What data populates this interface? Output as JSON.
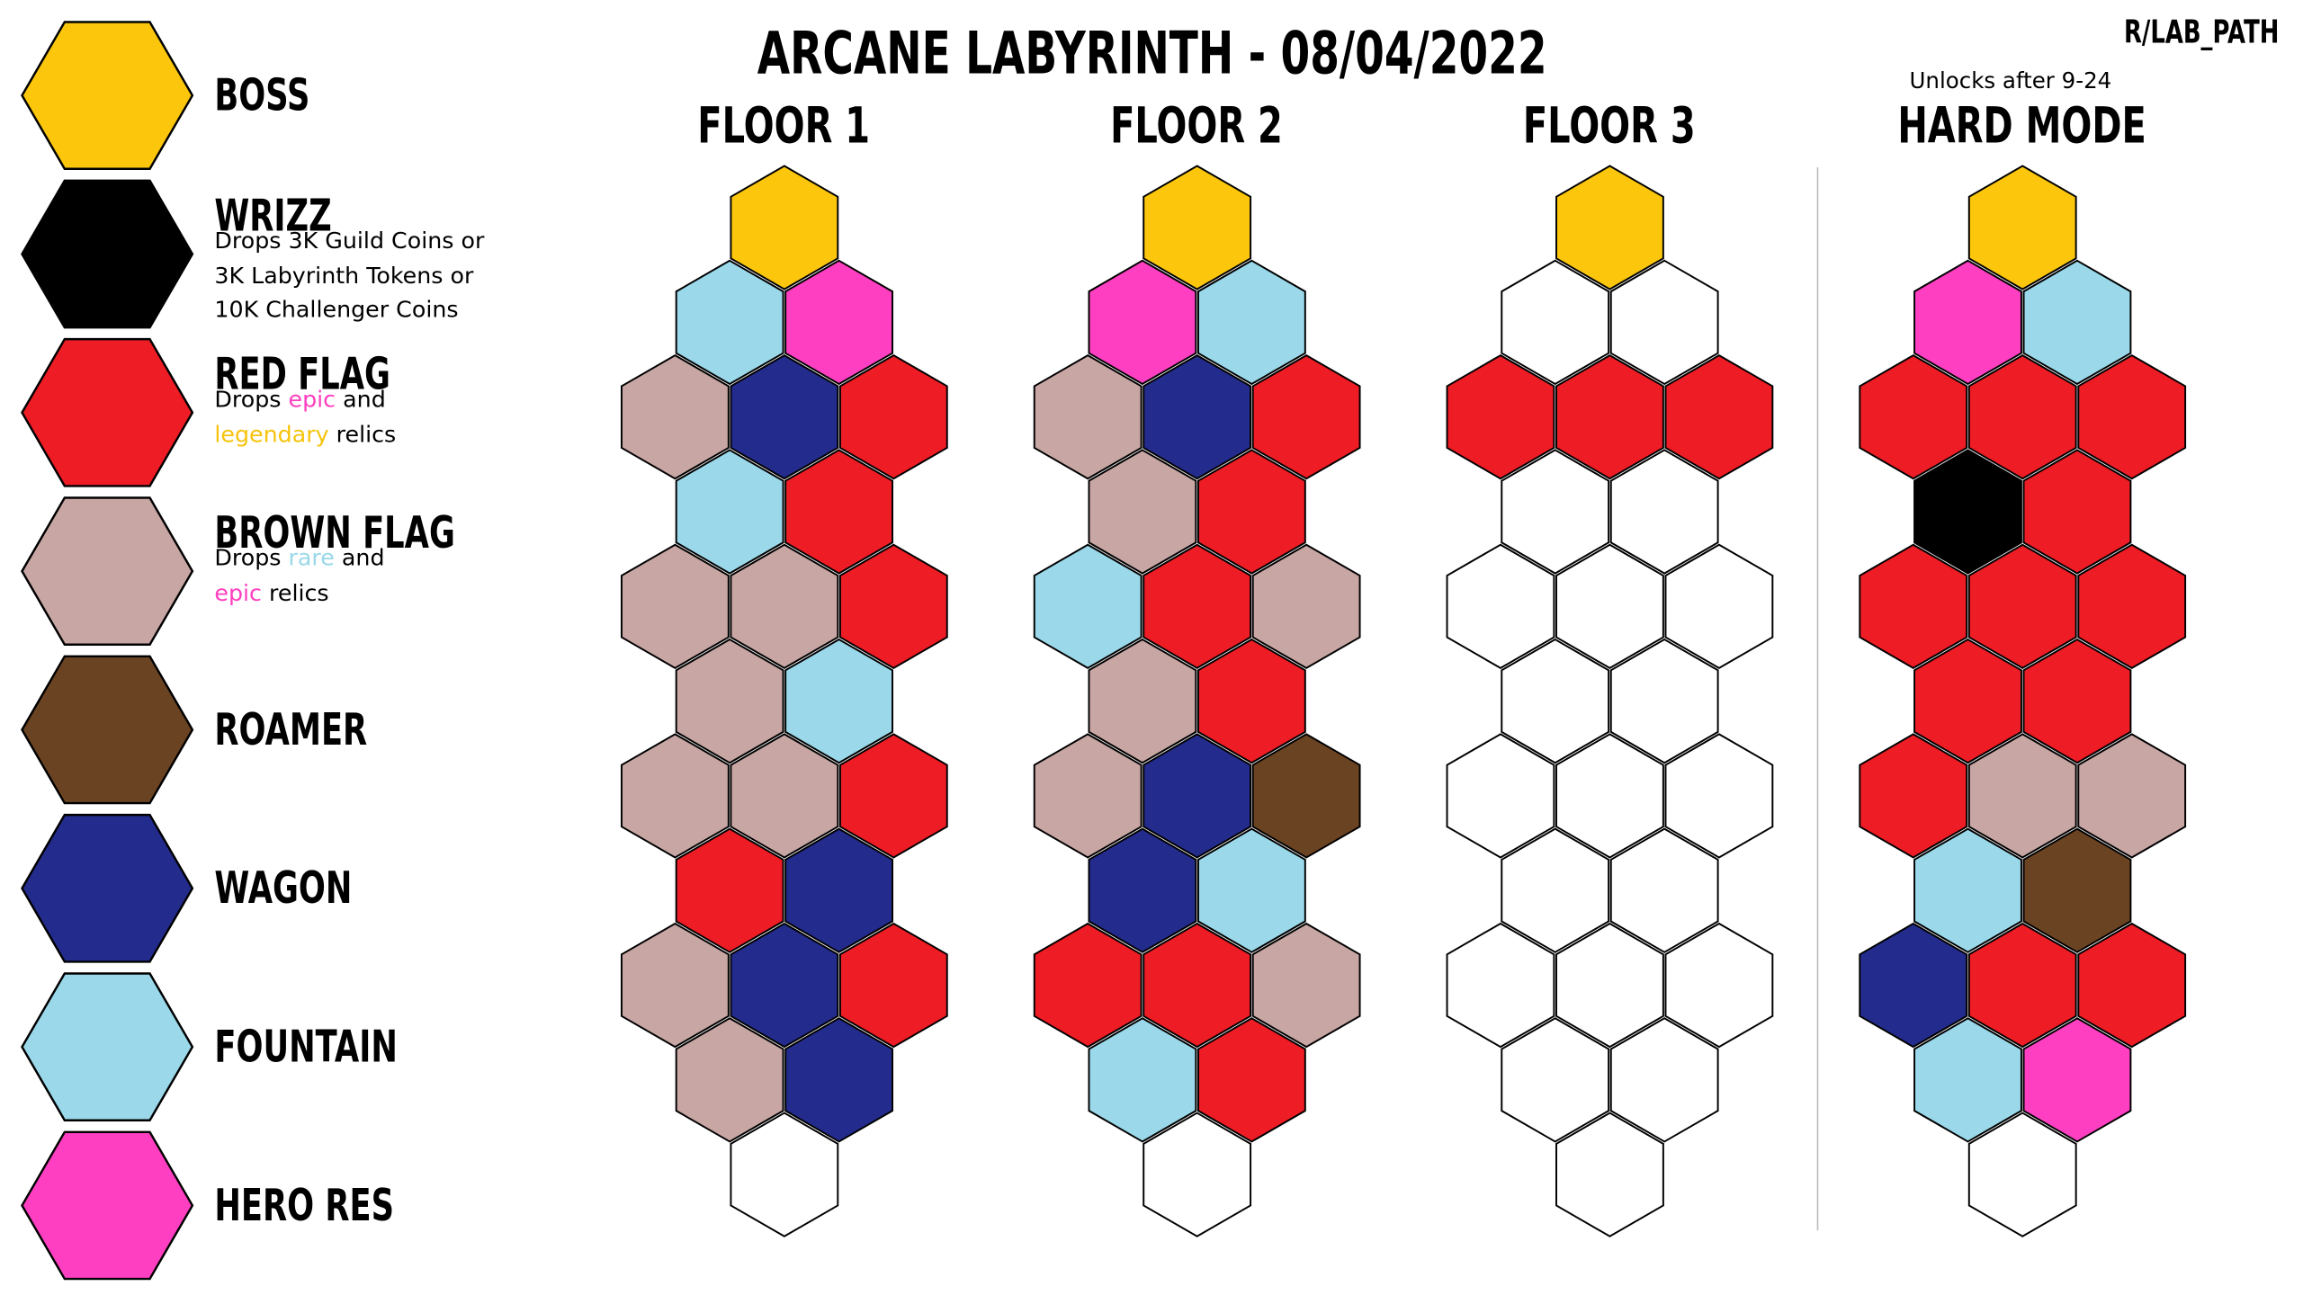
{
  "title": "ARCANE LABYRINTH - 08/04/2022",
  "credit": "R/LAB_PATH",
  "unlock_note": "Unlocks after 9-24",
  "colors": {
    "B": "#fbc60b",
    "X": "#000000",
    "R": "#ee1c25",
    "F": "#c8a6a4",
    "M": "#6a4322",
    "W": "#232c8c",
    "U": "#9ad8ea",
    "H": "#fe3fc2",
    "E": "#ffffff"
  },
  "legend": [
    {
      "key": "B",
      "name": "BOSS",
      "icon": "boss-hex-icon",
      "desc": []
    },
    {
      "key": "X",
      "name": "WRIZZ",
      "icon": "wrizz-hex-icon",
      "desc": [
        [
          {
            "t": "Drops 3K Guild Coins or"
          }
        ],
        [
          {
            "t": "3K Labyrinth Tokens or"
          }
        ],
        [
          {
            "t": "10K Challenger Coins"
          }
        ]
      ]
    },
    {
      "key": "R",
      "name": "RED FLAG",
      "icon": "red-flag-hex-icon",
      "desc": [
        [
          {
            "t": "Drops "
          },
          {
            "t": "epic",
            "c": "epic"
          },
          {
            "t": " and"
          }
        ],
        [
          {
            "t": "legendary",
            "c": "legendary"
          },
          {
            "t": " relics"
          }
        ]
      ]
    },
    {
      "key": "F",
      "name": "BROWN FLAG",
      "icon": "brown-flag-hex-icon",
      "desc": [
        [
          {
            "t": "Drops "
          },
          {
            "t": "rare",
            "c": "rare"
          },
          {
            "t": " and"
          }
        ],
        [
          {
            "t": "epic",
            "c": "epic"
          },
          {
            "t": " relics"
          }
        ]
      ]
    },
    {
      "key": "M",
      "name": "ROAMER",
      "icon": "roamer-hex-icon",
      "desc": []
    },
    {
      "key": "W",
      "name": "WAGON",
      "icon": "wagon-hex-icon",
      "desc": []
    },
    {
      "key": "U",
      "name": "FOUNTAIN",
      "icon": "fountain-hex-icon",
      "desc": []
    },
    {
      "key": "H",
      "name": "HERO RES",
      "icon": "hero-res-hex-icon",
      "desc": []
    }
  ],
  "floors": [
    {
      "id": "floor-1",
      "title": "FLOOR 1",
      "rows": [
        "B",
        "UH",
        "FWR",
        "UR",
        "FFR",
        "FU",
        "FFR",
        "RW",
        "FWR",
        "FW",
        "E"
      ]
    },
    {
      "id": "floor-2",
      "title": "FLOOR 2",
      "rows": [
        "B",
        "HU",
        "FWR",
        "FR",
        "URF",
        "FR",
        "FWM",
        "WU",
        "RRF",
        "UR",
        "E"
      ]
    },
    {
      "id": "floor-3",
      "title": "FLOOR 3",
      "rows": [
        "B",
        "EE",
        "RRR",
        "EE",
        "EEE",
        "EE",
        "EEE",
        "EE",
        "EEE",
        "EE",
        "E"
      ]
    },
    {
      "id": "hard-mode",
      "title": "HARD MODE",
      "rows": [
        "B",
        "HU",
        "RRR",
        "XR",
        "RRR",
        "RR",
        "RFF",
        "UM",
        "WRR",
        "UH",
        "E"
      ]
    }
  ]
}
